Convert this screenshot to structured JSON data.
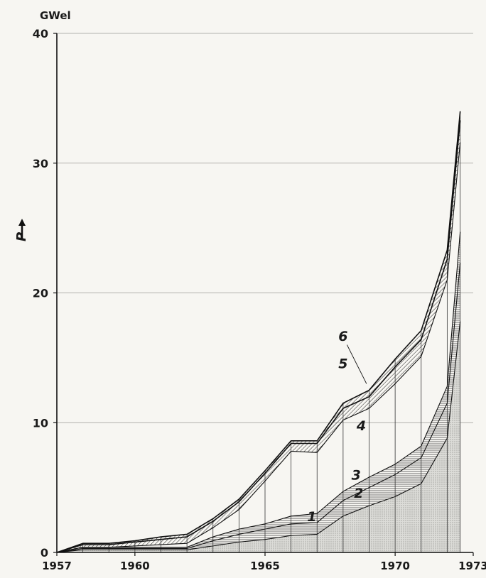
{
  "chart_data": {
    "type": "area",
    "unit_label": "GWel",
    "ylabel": "P",
    "xlim": [
      1957,
      1973
    ],
    "ylim": [
      0,
      40
    ],
    "x_ticks": [
      1957,
      1960,
      1965,
      1970,
      1973
    ],
    "y_ticks": [
      0,
      10,
      20,
      30,
      40
    ],
    "grid": "horizontal",
    "stacked": true,
    "x": [
      1957,
      1958,
      1959,
      1960,
      1961,
      1962,
      1963,
      1964,
      1965,
      1966,
      1967,
      1968,
      1969,
      1970,
      1971,
      1972,
      1972.5
    ],
    "series": [
      {
        "name": "1",
        "values": [
          0,
          0.2,
          0.2,
          0.2,
          0.2,
          0.2,
          0.5,
          0.8,
          1.0,
          1.3,
          1.4,
          2.8,
          3.6,
          4.3,
          5.3,
          8.8,
          17.8
        ]
      },
      {
        "name": "2",
        "values": [
          0,
          0.1,
          0.1,
          0.1,
          0.1,
          0.1,
          0.4,
          0.6,
          0.8,
          0.9,
          0.9,
          1.2,
          1.4,
          1.7,
          2.0,
          2.7,
          4.5
        ]
      },
      {
        "name": "3",
        "values": [
          0,
          0.1,
          0.1,
          0.1,
          0.1,
          0.1,
          0.3,
          0.4,
          0.4,
          0.6,
          0.7,
          0.7,
          0.8,
          0.8,
          0.9,
          1.3,
          2.4
        ]
      },
      {
        "name": "4",
        "values": [
          0,
          0,
          0,
          0.1,
          0.2,
          0.3,
          0.7,
          1.5,
          3.3,
          5.0,
          4.7,
          5.5,
          5.3,
          6.2,
          6.9,
          8.2,
          6.9
        ]
      },
      {
        "name": "5",
        "values": [
          0,
          0.2,
          0.2,
          0.3,
          0.4,
          0.5,
          0.5,
          0.6,
          0.6,
          0.6,
          0.7,
          0.9,
          0.9,
          1.3,
          1.3,
          1.6,
          1.7
        ]
      },
      {
        "name": "6",
        "values": [
          0,
          0.1,
          0.1,
          0.1,
          0.2,
          0.2,
          0.2,
          0.2,
          0.2,
          0.2,
          0.2,
          0.4,
          0.5,
          0.6,
          0.7,
          0.7,
          0.7
        ]
      }
    ]
  }
}
